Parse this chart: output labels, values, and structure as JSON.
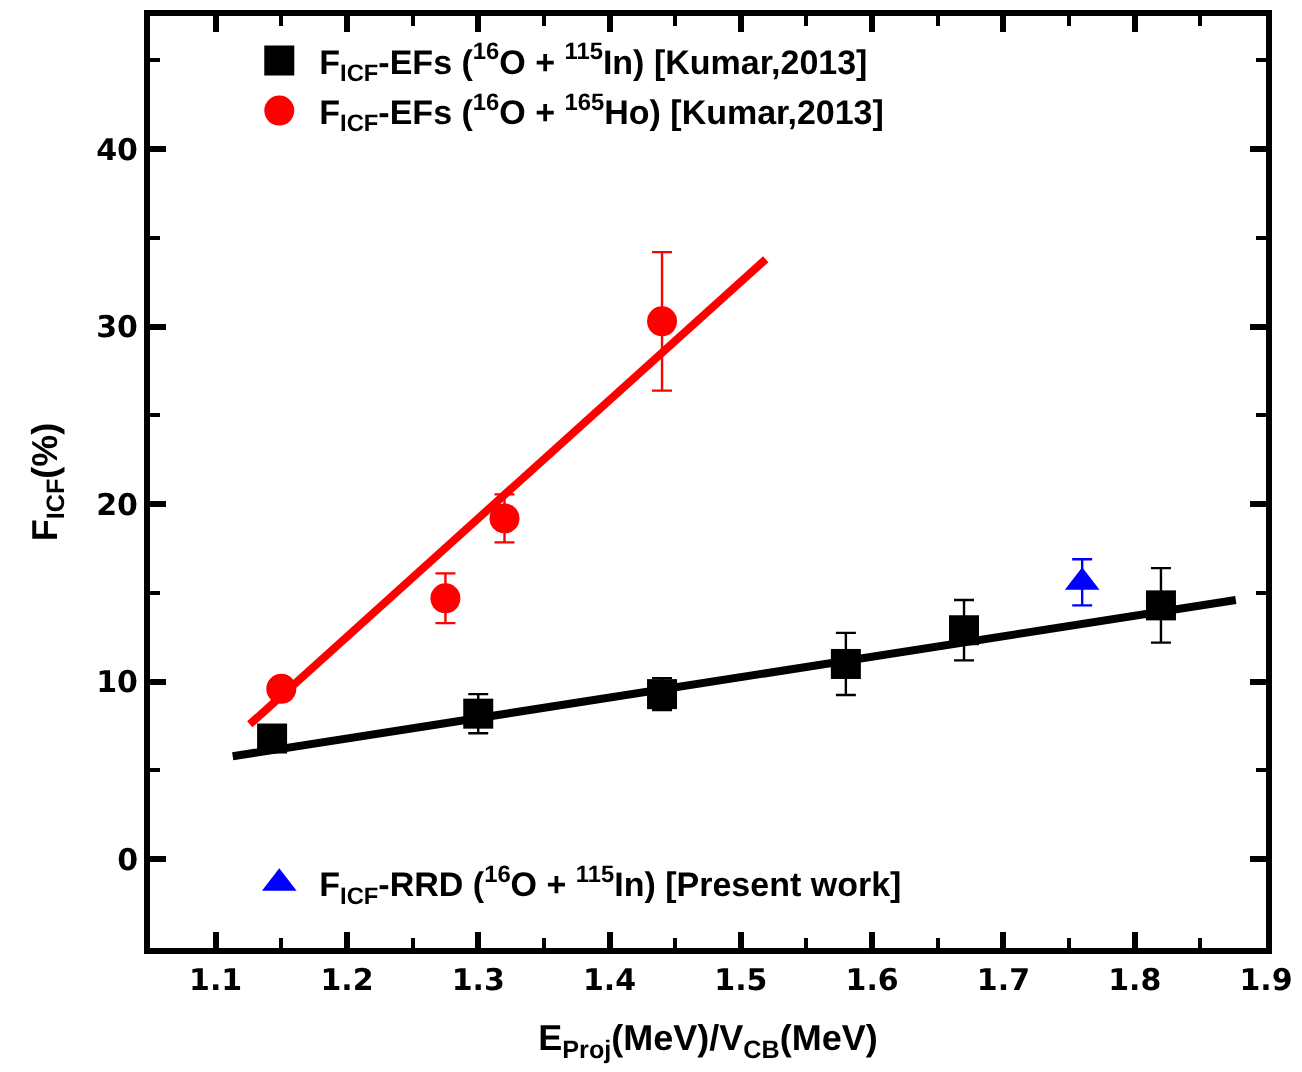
{
  "chart_data": {
    "type": "scatter",
    "xlabel": "E$_{Proj}$(MeV)/V$_{CB}$(MeV)",
    "ylabel": "F$_{ICF}$(%)",
    "xlim": [
      1.05,
      1.9
    ],
    "xticks": [
      1.1,
      1.2,
      1.3,
      1.4,
      1.5,
      1.6,
      1.7,
      1.8,
      1.9
    ],
    "ylim": [
      -5,
      47.5
    ],
    "yticks": [
      0,
      10,
      20,
      30,
      40
    ],
    "legend": "top",
    "series": [
      {
        "name": "F$_{ICF}$-EFs ($^{16}$O + $^{115}$In) [Kumar,2013]",
        "color": "#000000",
        "marker": "square",
        "x": [
          1.143,
          1.3,
          1.44,
          1.58,
          1.67,
          1.82
        ],
        "values": [
          6.8,
          8.2,
          9.3,
          11.0,
          12.9,
          14.3
        ],
        "errors": [
          null,
          1.1,
          0.9,
          1.75,
          1.7,
          2.1
        ]
      },
      {
        "name": "F$_{ICF}$-EFs ($^{16}$O + $^{165}$Ho) [Kumar,2013]",
        "color": "#ff0000",
        "marker": "circle",
        "x": [
          1.15,
          1.275,
          1.32,
          1.44
        ],
        "values": [
          9.6,
          14.7,
          19.2,
          30.3
        ],
        "errors": [
          null,
          1.4,
          1.35,
          3.9
        ]
      },
      {
        "type": "line",
        "color": "#ff0000",
        "marker": "none",
        "x": [
          1.126,
          1.519
        ],
        "values": [
          7.6,
          33.8
        ]
      },
      {
        "type": "line",
        "color": "#000000",
        "marker": "none",
        "x": [
          1.113,
          1.877
        ],
        "values": [
          5.8,
          14.6
        ]
      },
      {
        "name": "F$_{ICF}$-RRD ($^{16}$O + $^{115}$In) [Present work]",
        "color": "#0000ff",
        "marker": "triangle",
        "x": [
          1.76
        ],
        "values": [
          15.6
        ],
        "errors": [
          1.3
        ]
      }
    ]
  }
}
